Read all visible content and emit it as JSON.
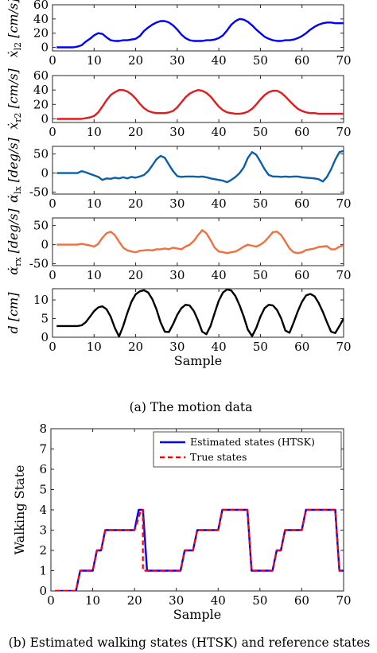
{
  "captions": {
    "a": "(a) The motion data",
    "b": "(b) Estimated walking states (HTSK) and reference states"
  },
  "chart_data": [
    {
      "type": "line",
      "ylabel_main": "ẋ",
      "ylabel_sub": "l2",
      "ylabel_unit": " [cm/s]",
      "xlim": [
        0,
        70
      ],
      "ylim": [
        -5,
        60
      ],
      "xticks": [
        "0",
        "10",
        "20",
        "30",
        "40",
        "50",
        "60",
        "70"
      ],
      "yticks": [
        "0",
        "20",
        "40",
        "60"
      ],
      "series": [
        {
          "color": "#0000ff",
          "x": [
            1,
            3,
            5,
            6,
            7,
            8,
            9,
            10,
            11,
            12,
            13,
            14,
            15,
            16,
            17,
            18,
            19,
            20,
            21,
            22,
            23,
            24,
            25,
            26,
            27,
            28,
            29,
            30,
            31,
            32,
            33,
            34,
            35,
            36,
            37,
            38,
            39,
            40,
            41,
            42,
            43,
            44,
            45,
            46,
            47,
            48,
            49,
            50,
            51,
            52,
            53,
            54,
            55,
            56,
            57,
            58,
            59,
            60,
            61,
            62,
            63,
            64,
            65,
            66,
            67,
            68,
            69,
            70
          ],
          "y": [
            0,
            0,
            0,
            1,
            3,
            8,
            12,
            17,
            20,
            19,
            14,
            10,
            9,
            9,
            10,
            10,
            11,
            12,
            16,
            23,
            28,
            32,
            35,
            37,
            37,
            35,
            31,
            25,
            18,
            13,
            10,
            9,
            9,
            9,
            10,
            10,
            11,
            13,
            17,
            24,
            32,
            37,
            40,
            39,
            36,
            31,
            25,
            20,
            15,
            12,
            10,
            9,
            9,
            10,
            10,
            11,
            13,
            16,
            20,
            25,
            29,
            32,
            34,
            35,
            35,
            34,
            34,
            34
          ]
        }
      ]
    },
    {
      "type": "line",
      "ylabel_main": "ẋ",
      "ylabel_sub": "r2",
      "ylabel_unit": " [cm/s]",
      "xlim": [
        0,
        70
      ],
      "ylim": [
        -5,
        60
      ],
      "xticks": [
        "0",
        "10",
        "20",
        "30",
        "40",
        "50",
        "60",
        "70"
      ],
      "yticks": [
        "0",
        "20",
        "40",
        "60"
      ],
      "series": [
        {
          "color": "#e41a1c",
          "x": [
            1,
            3,
            5,
            6,
            7,
            8,
            9,
            10,
            11,
            12,
            13,
            14,
            15,
            16,
            17,
            18,
            19,
            20,
            21,
            22,
            23,
            24,
            25,
            26,
            27,
            28,
            29,
            30,
            31,
            32,
            33,
            34,
            35,
            36,
            37,
            38,
            39,
            40,
            41,
            42,
            43,
            44,
            45,
            46,
            47,
            48,
            49,
            50,
            51,
            52,
            53,
            54,
            55,
            56,
            57,
            58,
            59,
            60,
            61,
            62,
            63,
            64,
            65,
            66,
            67,
            68,
            69,
            70
          ],
          "y": [
            0,
            0,
            0,
            0,
            0,
            1,
            2,
            4,
            9,
            17,
            26,
            33,
            37,
            40,
            40,
            38,
            34,
            28,
            21,
            15,
            11,
            9,
            8,
            8,
            8,
            9,
            11,
            16,
            23,
            30,
            35,
            38,
            40,
            39,
            36,
            31,
            24,
            17,
            12,
            9,
            8,
            7,
            7,
            8,
            10,
            14,
            20,
            27,
            33,
            37,
            39,
            39,
            36,
            31,
            25,
            19,
            14,
            11,
            9,
            8,
            8,
            7,
            7,
            7,
            7,
            7,
            7,
            7
          ]
        }
      ]
    },
    {
      "type": "line",
      "ylabel_main": "α̇",
      "ylabel_sub": "lx",
      "ylabel_unit": " [deg/s]",
      "xlim": [
        0,
        70
      ],
      "ylim": [
        -55,
        70
      ],
      "xticks": [
        "0",
        "10",
        "20",
        "30",
        "40",
        "50",
        "60",
        "70"
      ],
      "yticks": [
        "-50",
        "0",
        "50"
      ],
      "series": [
        {
          "color": "#0b5ea8",
          "x": [
            1,
            3,
            5,
            6,
            7,
            8,
            9,
            10,
            11,
            12,
            13,
            14,
            15,
            16,
            17,
            18,
            19,
            20,
            21,
            22,
            23,
            24,
            25,
            26,
            27,
            28,
            29,
            30,
            31,
            32,
            33,
            34,
            35,
            36,
            37,
            38,
            39,
            40,
            41,
            42,
            43,
            44,
            45,
            46,
            47,
            48,
            49,
            50,
            51,
            52,
            53,
            54,
            55,
            56,
            57,
            58,
            59,
            60,
            61,
            62,
            63,
            64,
            65,
            66,
            67,
            68,
            69,
            70
          ],
          "y": [
            0,
            0,
            0,
            0,
            5,
            2,
            -2,
            -6,
            -10,
            -18,
            -14,
            -15,
            -12,
            -14,
            -11,
            -14,
            -10,
            -12,
            -9,
            -5,
            5,
            20,
            36,
            45,
            40,
            22,
            5,
            -8,
            -10,
            -9,
            -9,
            -9,
            -10,
            -9,
            -11,
            -14,
            -16,
            -18,
            -20,
            -24,
            -18,
            -10,
            0,
            15,
            40,
            55,
            48,
            30,
            10,
            -5,
            -9,
            -9,
            -10,
            -9,
            -10,
            -9,
            -9,
            -11,
            -12,
            -13,
            -14,
            -16,
            -22,
            -10,
            10,
            35,
            55,
            58
          ]
        }
      ]
    },
    {
      "type": "line",
      "ylabel_main": "α̇",
      "ylabel_sub": "rx",
      "ylabel_unit": " [deg/s]",
      "xlim": [
        0,
        70
      ],
      "ylim": [
        -55,
        70
      ],
      "xticks": [
        "0",
        "10",
        "20",
        "30",
        "40",
        "50",
        "60",
        "70"
      ],
      "yticks": [
        "-50",
        "0",
        "50"
      ],
      "series": [
        {
          "color": "#f07040",
          "x": [
            1,
            3,
            5,
            6,
            7,
            8,
            9,
            10,
            11,
            12,
            13,
            14,
            15,
            16,
            17,
            18,
            19,
            20,
            21,
            22,
            23,
            24,
            25,
            26,
            27,
            28,
            29,
            30,
            31,
            32,
            33,
            34,
            35,
            36,
            37,
            38,
            39,
            40,
            41,
            42,
            43,
            44,
            45,
            46,
            47,
            48,
            49,
            50,
            51,
            52,
            53,
            54,
            55,
            56,
            57,
            58,
            59,
            60,
            61,
            62,
            63,
            64,
            65,
            66,
            67,
            68,
            69,
            70
          ],
          "y": [
            0,
            0,
            0,
            0,
            2,
            0,
            -2,
            -5,
            2,
            18,
            30,
            34,
            25,
            8,
            -8,
            -15,
            -18,
            -20,
            -16,
            -15,
            -14,
            -15,
            -12,
            -12,
            -10,
            -12,
            -8,
            -10,
            -12,
            -5,
            0,
            10,
            25,
            38,
            30,
            12,
            -8,
            -18,
            -20,
            -22,
            -20,
            -18,
            -12,
            -5,
            0,
            -3,
            -5,
            0,
            8,
            20,
            33,
            34,
            25,
            8,
            -10,
            -20,
            -22,
            -20,
            -14,
            -12,
            -10,
            -6,
            -5,
            -4,
            -12,
            -12,
            -5,
            -2
          ]
        }
      ]
    },
    {
      "type": "line",
      "ylabel_main": "d",
      "ylabel_sub": "",
      "ylabel_unit": " [cm]",
      "xlabel": "Sample",
      "xlim": [
        0,
        70
      ],
      "ylim": [
        0,
        13
      ],
      "xticks": [
        "0",
        "10",
        "20",
        "30",
        "40",
        "50",
        "60",
        "70"
      ],
      "yticks": [
        "0",
        "5",
        "10"
      ],
      "series": [
        {
          "color": "#000000",
          "x": [
            1,
            2,
            3,
            4,
            5,
            6,
            7,
            8,
            9,
            10,
            11,
            12,
            13,
            14,
            15,
            16,
            17,
            18,
            19,
            20,
            21,
            22,
            23,
            24,
            25,
            26,
            27,
            28,
            29,
            30,
            31,
            32,
            33,
            34,
            35,
            36,
            37,
            38,
            39,
            40,
            41,
            42,
            43,
            44,
            45,
            46,
            47,
            48,
            49,
            50,
            51,
            52,
            53,
            54,
            55,
            56,
            57,
            58,
            59,
            60,
            61,
            62,
            63,
            64,
            65,
            66,
            67,
            68,
            69,
            70
          ],
          "y": [
            3,
            3,
            3,
            3,
            3,
            3,
            3.2,
            4,
            5.5,
            7,
            8,
            8.3,
            7.5,
            5.5,
            2.5,
            0.2,
            3,
            6.5,
            9.5,
            11.5,
            12.3,
            12.6,
            12,
            10.2,
            7.5,
            4,
            1.5,
            1.4,
            3.5,
            6,
            7.8,
            8.7,
            8.5,
            7,
            4.5,
            1.5,
            0.8,
            3,
            6.5,
            9.8,
            12,
            12.8,
            12.5,
            11,
            8.5,
            5.5,
            2,
            0.3,
            2.5,
            5.5,
            7.8,
            8.7,
            8.5,
            7.3,
            5,
            1.8,
            1.2,
            4,
            7,
            9.5,
            11.2,
            11.6,
            11,
            9.2,
            6.8,
            4,
            1.5,
            1.1,
            3,
            5
          ]
        }
      ]
    },
    {
      "type": "line",
      "ylabel": "Walking State",
      "xlabel": "Sample",
      "xlim": [
        0,
        70
      ],
      "ylim": [
        0,
        8
      ],
      "xticks": [
        "0",
        "10",
        "20",
        "30",
        "40",
        "50",
        "60",
        "70"
      ],
      "yticks": [
        "0",
        "1",
        "2",
        "3",
        "4",
        "5",
        "6",
        "7",
        "8"
      ],
      "legend_position": "top-right",
      "series": [
        {
          "name": "Estimated states (HTSK)",
          "color": "#0000ff",
          "style": "solid",
          "x": [
            1,
            6,
            7,
            10,
            11,
            12,
            13,
            14,
            20,
            21,
            22,
            23,
            31,
            32,
            34,
            35,
            40,
            41,
            46,
            47,
            48,
            53,
            54,
            55,
            56,
            57,
            60,
            61,
            68,
            69,
            70
          ],
          "y": [
            0,
            0,
            1,
            1,
            2,
            2,
            3,
            3,
            3,
            4,
            4,
            1,
            1,
            2,
            2,
            3,
            3,
            4,
            4,
            4,
            1,
            1,
            2,
            2,
            3,
            3,
            3,
            4,
            4,
            1,
            1
          ]
        },
        {
          "name": "True states",
          "color": "#ff0000",
          "style": "dashed",
          "x": [
            1,
            6,
            7,
            10,
            11,
            12,
            13,
            14,
            20,
            21,
            21.5,
            22,
            22,
            23,
            31,
            32,
            34,
            35,
            40,
            41,
            46,
            47,
            48,
            53,
            54,
            55,
            56,
            57,
            60,
            61,
            68,
            69,
            70
          ],
          "y": [
            0,
            0,
            1,
            1,
            2,
            2,
            3,
            3,
            3,
            3.6,
            4,
            4,
            1,
            1,
            1,
            2,
            2,
            3,
            3,
            4,
            4,
            4,
            1,
            1,
            2,
            2,
            3,
            3,
            3,
            4,
            4,
            1,
            1
          ]
        }
      ]
    }
  ]
}
